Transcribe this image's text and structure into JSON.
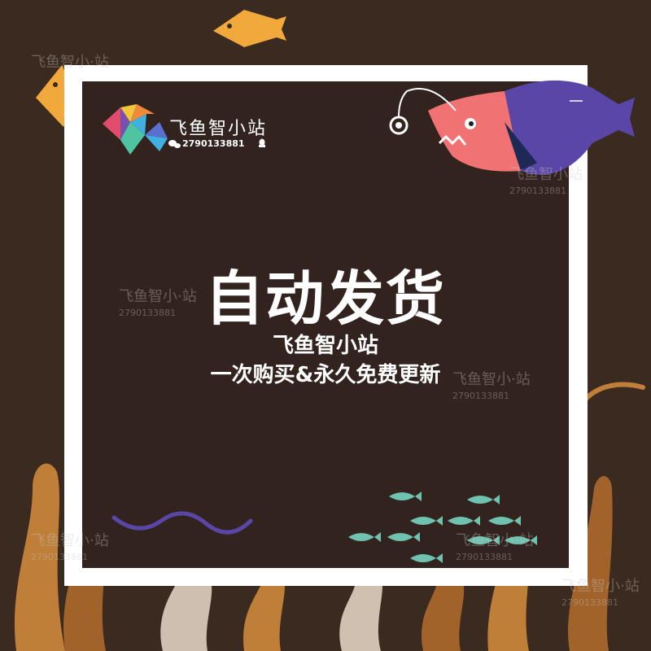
{
  "brand": {
    "name": "飞鱼智小站",
    "contact": "2790133881"
  },
  "headline": "自动发货",
  "sublines": [
    "飞鱼智小站",
    "一次购买&永久免费更新"
  ],
  "watermark": {
    "name": "飞鱼智小站",
    "name_dotted": "飞鱼智小·站",
    "number": "2790133881"
  },
  "colors": {
    "background": "#3a2a20",
    "frame": "#ffffff",
    "panel": "#33231f",
    "fish_orange": "#f2a93b",
    "fish_purple": "#5a46a6",
    "fish_pink": "#f07272",
    "school_teal": "#6fc1b0",
    "wave_purple": "#5a46a6",
    "plants": "#c7843a"
  }
}
